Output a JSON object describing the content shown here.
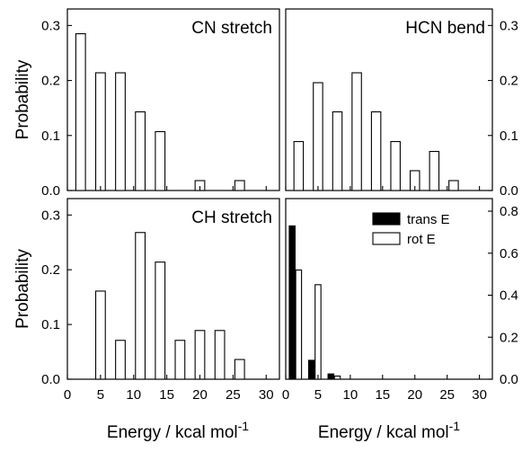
{
  "chart_data": [
    {
      "type": "bar",
      "panel": "top-left",
      "title": "CN stretch",
      "ylabel": "Probability",
      "xlabel": "",
      "xlim": [
        0,
        32
      ],
      "ylim": [
        0,
        0.33
      ],
      "yticks": [
        "0.0",
        "0.1",
        "0.2",
        "0.3"
      ],
      "y_axis_side": "left",
      "series": [
        {
          "fill": "#ffffff",
          "x": [
            2,
            5,
            8,
            11,
            14,
            17,
            20,
            23,
            26
          ],
          "values": [
            0.285,
            0.214,
            0.214,
            0.143,
            0.107,
            0.0,
            0.018,
            0.0,
            0.018
          ]
        }
      ]
    },
    {
      "type": "bar",
      "panel": "top-right",
      "title": "HCN bend",
      "ylabel": "",
      "xlabel": "",
      "xlim": [
        0,
        32
      ],
      "ylim": [
        0,
        0.33
      ],
      "yticks": [
        "0.0",
        "0.1",
        "0.2",
        "0.3"
      ],
      "y_axis_side": "right",
      "series": [
        {
          "fill": "#ffffff",
          "x": [
            2,
            5,
            8,
            11,
            14,
            17,
            20,
            23,
            26
          ],
          "values": [
            0.089,
            0.196,
            0.143,
            0.214,
            0.143,
            0.089,
            0.036,
            0.071,
            0.018
          ]
        }
      ]
    },
    {
      "type": "bar",
      "panel": "bottom-left",
      "title": "CH stretch",
      "ylabel": "Probability",
      "xlabel": "Energy / kcal mol-1",
      "xlim": [
        0,
        32
      ],
      "ylim": [
        0,
        0.33
      ],
      "yticks": [
        "0.0",
        "0.1",
        "0.2",
        "0.3"
      ],
      "xticks": [
        "0",
        "5",
        "10",
        "15",
        "20",
        "25",
        "30"
      ],
      "y_axis_side": "left",
      "series": [
        {
          "fill": "#ffffff",
          "x": [
            2,
            5,
            8,
            11,
            14,
            17,
            20,
            23,
            26
          ],
          "values": [
            0.0,
            0.161,
            0.071,
            0.268,
            0.214,
            0.071,
            0.089,
            0.089,
            0.036
          ]
        }
      ]
    },
    {
      "type": "bar",
      "panel": "bottom-right",
      "title": "",
      "ylabel": "",
      "xlabel": "Energy / kcal mol-1",
      "xlim": [
        0,
        32
      ],
      "ylim": [
        0,
        0.86
      ],
      "yticks": [
        "0.0",
        "0.2",
        "0.4",
        "0.6",
        "0.8"
      ],
      "xticks": [
        "0",
        "5",
        "10",
        "15",
        "20",
        "25",
        "30"
      ],
      "y_axis_side": "right",
      "legend": {
        "placement": "top-right",
        "entries": [
          "trans E",
          "rot E"
        ]
      },
      "series": [
        {
          "name": "trans E",
          "fill": "#000000",
          "x": [
            1,
            4,
            7
          ],
          "values": [
            0.73,
            0.09,
            0.025
          ]
        },
        {
          "name": "rot E",
          "fill": "#ffffff",
          "x": [
            2,
            5,
            8
          ],
          "values": [
            0.52,
            0.45,
            0.015
          ]
        }
      ]
    }
  ]
}
